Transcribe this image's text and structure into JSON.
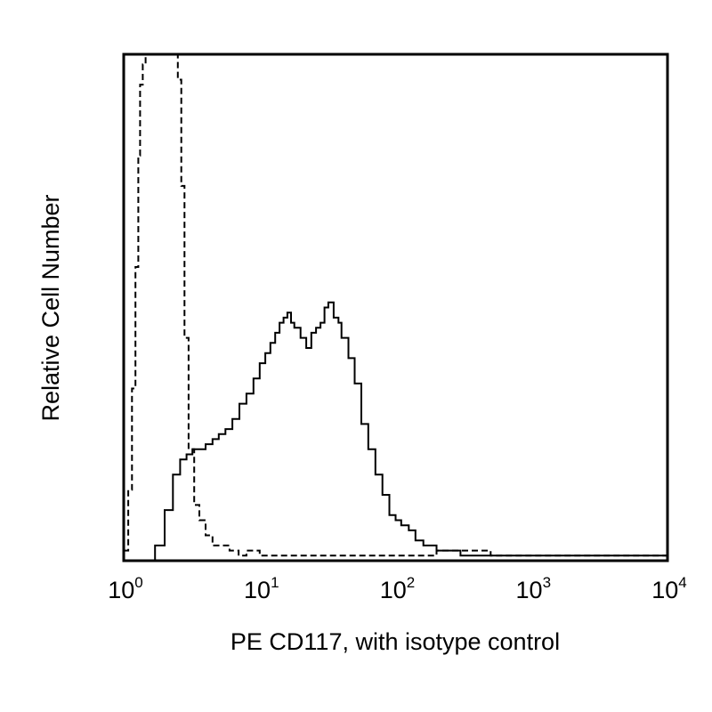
{
  "chart_data": {
    "type": "line",
    "title": "",
    "xlabel": "PE CD117, with isotype control",
    "ylabel": "Relative Cell Number",
    "x_scale": "log",
    "xlim": [
      1,
      10000
    ],
    "ylim": [
      0,
      1
    ],
    "grid": false,
    "legend": "none",
    "x_ticks": [
      {
        "base": "10",
        "exp": "0",
        "value": 1
      },
      {
        "base": "10",
        "exp": "1",
        "value": 10
      },
      {
        "base": "10",
        "exp": "2",
        "value": 100
      },
      {
        "base": "10",
        "exp": "3",
        "value": 1000
      },
      {
        "base": "10",
        "exp": "4",
        "value": 10000
      }
    ],
    "series": [
      {
        "line_style": "dashed",
        "color": "#000000",
        "x": [
          1.0,
          1.08,
          1.15,
          1.22,
          1.28,
          1.32,
          1.38,
          1.45,
          1.55,
          1.7,
          1.9,
          2.05,
          2.2,
          2.35,
          2.5,
          2.65,
          2.8,
          3.0,
          3.3,
          3.6,
          4.0,
          4.5,
          5.0,
          6.0,
          7.0,
          8.0,
          10.0,
          15.0,
          20.0,
          30.0,
          50.0,
          100,
          200,
          500,
          1000,
          10000
        ],
        "values": [
          0.02,
          0.14,
          0.34,
          0.58,
          0.8,
          0.94,
          0.98,
          1.0,
          1.0,
          1.0,
          1.0,
          1.0,
          1.0,
          1.0,
          0.95,
          0.74,
          0.44,
          0.22,
          0.11,
          0.08,
          0.05,
          0.03,
          0.03,
          0.02,
          0.01,
          0.02,
          0.01,
          0.01,
          0.01,
          0.01,
          0.01,
          0.01,
          0.02,
          0.01,
          0.01,
          0.01
        ]
      },
      {
        "line_style": "solid",
        "color": "#000000",
        "x": [
          1.0,
          1.3,
          1.7,
          2.0,
          2.3,
          2.6,
          2.9,
          3.2,
          3.6,
          4.0,
          4.5,
          5.0,
          5.6,
          6.3,
          7.1,
          8.0,
          9.0,
          10.0,
          11.0,
          12.0,
          13.0,
          14.0,
          15.0,
          16.0,
          17.0,
          18.0,
          20.0,
          22.0,
          24.0,
          26.0,
          28.0,
          30.0,
          32.0,
          35.0,
          38.0,
          40.0,
          45.0,
          50.0,
          56.0,
          63.0,
          71.0,
          80.0,
          90.0,
          100,
          110,
          125,
          140,
          160,
          180,
          200,
          250,
          300,
          400,
          500,
          700,
          1000,
          2000,
          10000
        ],
        "values": [
          0.0,
          0.0,
          0.03,
          0.1,
          0.17,
          0.2,
          0.21,
          0.22,
          0.22,
          0.23,
          0.24,
          0.25,
          0.26,
          0.28,
          0.31,
          0.33,
          0.36,
          0.39,
          0.41,
          0.43,
          0.45,
          0.47,
          0.48,
          0.49,
          0.47,
          0.46,
          0.44,
          0.42,
          0.45,
          0.46,
          0.47,
          0.5,
          0.51,
          0.48,
          0.47,
          0.44,
          0.4,
          0.35,
          0.27,
          0.22,
          0.17,
          0.13,
          0.09,
          0.08,
          0.07,
          0.06,
          0.04,
          0.03,
          0.03,
          0.02,
          0.02,
          0.01,
          0.01,
          0.01,
          0.01,
          0.01,
          0.01,
          0.01
        ]
      }
    ]
  }
}
